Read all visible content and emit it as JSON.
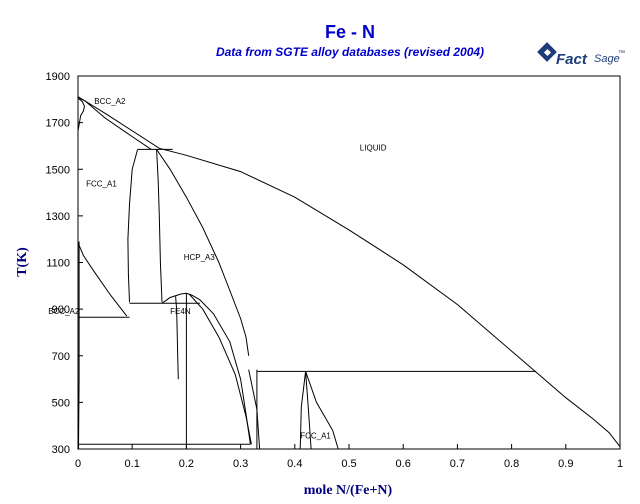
{
  "chart_data": {
    "type": "phase-diagram",
    "title": "Fe - N",
    "subtitle": "Data from SGTE alloy databases (revised 2004)",
    "xlabel": "mole N/(Fe+N)",
    "ylabel": "T(K)",
    "xlim": [
      0,
      1
    ],
    "ylim": [
      300,
      1900
    ],
    "x_ticks": [
      "0",
      "0.1",
      "0.2",
      "0.3",
      "0.4",
      "0.5",
      "0.6",
      "0.7",
      "0.8",
      "0.9",
      "1"
    ],
    "y_ticks": [
      "300",
      "500",
      "700",
      "900",
      "1100",
      "1300",
      "1500",
      "1700",
      "1900"
    ],
    "grid": false,
    "phase_labels": [
      {
        "text": "LIQUID",
        "x": 0.52,
        "y": 1580
      },
      {
        "text": "BCC_A2",
        "x": 0.03,
        "y": 1780
      },
      {
        "text": "FCC_A1",
        "x": 0.015,
        "y": 1425
      },
      {
        "text": "HCP_A3",
        "x": 0.195,
        "y": 1110
      },
      {
        "text": "BCC_A2",
        "x": -0.055,
        "y": 880
      },
      {
        "text": "FE4N",
        "x": 0.17,
        "y": 880
      },
      {
        "text": "FCC_A1",
        "x": 0.41,
        "y": 345
      }
    ],
    "boundaries": [
      {
        "id": "liquidus",
        "points": [
          [
            0,
            1811
          ],
          [
            0.05,
            1740
          ],
          [
            0.15,
            1590
          ],
          [
            0.2,
            1560
          ],
          [
            0.3,
            1490
          ],
          [
            0.4,
            1380
          ],
          [
            0.5,
            1240
          ],
          [
            0.6,
            1090
          ],
          [
            0.7,
            920
          ],
          [
            0.8,
            720
          ],
          [
            0.85,
            620
          ],
          [
            0.9,
            520
          ],
          [
            0.95,
            430
          ],
          [
            0.98,
            370
          ],
          [
            1.0,
            310
          ]
        ]
      },
      {
        "id": "delta-ferrite-liquid",
        "points": [
          [
            0,
            1811
          ],
          [
            0.006,
            1800
          ],
          [
            0.012,
            1795
          ]
        ]
      },
      {
        "id": "delta-loop-upper",
        "points": [
          [
            0,
            1805
          ],
          [
            0.008,
            1790
          ],
          [
            0.012,
            1770
          ],
          [
            0.01,
            1750
          ],
          [
            0.005,
            1730
          ],
          [
            0,
            1665
          ]
        ]
      },
      {
        "id": "fcc-solidus",
        "points": [
          [
            0.012,
            1795
          ],
          [
            0.05,
            1720
          ],
          [
            0.1,
            1640
          ],
          [
            0.135,
            1585
          ]
        ]
      },
      {
        "id": "peritectic-fcc-hcp",
        "points": [
          [
            0.11,
            1585
          ],
          [
            0.175,
            1585
          ]
        ]
      },
      {
        "id": "fcc-hcp-left",
        "points": [
          [
            0.11,
            1585
          ],
          [
            0.1,
            1500
          ],
          [
            0.095,
            1350
          ],
          [
            0.092,
            1200
          ],
          [
            0.093,
            1050
          ],
          [
            0.095,
            930
          ]
        ]
      },
      {
        "id": "fcc-hcp-right",
        "points": [
          [
            0.145,
            1585
          ],
          [
            0.148,
            1450
          ],
          [
            0.15,
            1300
          ],
          [
            0.152,
            1100
          ],
          [
            0.155,
            930
          ]
        ]
      },
      {
        "id": "hcp-liquid-right",
        "points": [
          [
            0.145,
            1585
          ],
          [
            0.17,
            1500
          ],
          [
            0.2,
            1380
          ],
          [
            0.23,
            1250
          ],
          [
            0.26,
            1100
          ],
          [
            0.28,
            980
          ],
          [
            0.3,
            860
          ],
          [
            0.31,
            780
          ],
          [
            0.315,
            700
          ]
        ]
      },
      {
        "id": "eutectoid-line",
        "points": [
          [
            0.095,
            925
          ],
          [
            0.225,
            925
          ]
        ]
      },
      {
        "id": "eutectoid-low-line",
        "points": [
          [
            0,
            865
          ],
          [
            0.095,
            865
          ]
        ]
      },
      {
        "id": "alpha-gamma-left",
        "points": [
          [
            0,
            1185
          ],
          [
            0.01,
            1130
          ],
          [
            0.03,
            1060
          ],
          [
            0.06,
            960
          ],
          [
            0.09,
            870
          ]
        ]
      },
      {
        "id": "fe4n-dome-left",
        "points": [
          [
            0.155,
            925
          ],
          [
            0.17,
            950
          ],
          [
            0.19,
            965
          ],
          [
            0.2,
            968
          ],
          [
            0.21,
            960
          ],
          [
            0.225,
            940
          ],
          [
            0.25,
            880
          ],
          [
            0.28,
            760
          ],
          [
            0.3,
            600
          ],
          [
            0.31,
            450
          ],
          [
            0.318,
            320
          ]
        ]
      },
      {
        "id": "fe4n-dome-inner",
        "points": [
          [
            0.18,
            955
          ],
          [
            0.182,
            900
          ],
          [
            0.183,
            800
          ],
          [
            0.184,
            700
          ],
          [
            0.185,
            600
          ]
        ]
      },
      {
        "id": "fe4n-vertical",
        "points": [
          [
            0.2,
            968
          ],
          [
            0.2,
            300
          ]
        ]
      },
      {
        "id": "fe4n-right-branch",
        "points": [
          [
            0.205,
            965
          ],
          [
            0.23,
            900
          ],
          [
            0.26,
            780
          ],
          [
            0.29,
            620
          ],
          [
            0.31,
            440
          ],
          [
            0.32,
            320
          ]
        ]
      },
      {
        "id": "bcc-low-line",
        "points": [
          [
            0.0,
            320
          ],
          [
            0.318,
            320
          ]
        ]
      },
      {
        "id": "gamma-prime-vertical",
        "points": [
          [
            0.33,
            640
          ],
          [
            0.33,
            300
          ]
        ]
      },
      {
        "id": "eps-low-boundary",
        "points": [
          [
            0.315,
            640
          ],
          [
            0.33,
            470
          ],
          [
            0.335,
            300
          ]
        ]
      },
      {
        "id": "eutectic-633",
        "points": [
          [
            0.33,
            633
          ],
          [
            0.845,
            633
          ]
        ]
      },
      {
        "id": "fcc-high-n-left",
        "points": [
          [
            0.42,
            633
          ],
          [
            0.412,
            480
          ],
          [
            0.41,
            300
          ]
        ]
      },
      {
        "id": "fcc-high-n-right",
        "points": [
          [
            0.42,
            633
          ],
          [
            0.44,
            500
          ],
          [
            0.47,
            380
          ],
          [
            0.48,
            300
          ]
        ]
      },
      {
        "id": "fcc-high-n-inner",
        "points": [
          [
            0.42,
            633
          ],
          [
            0.425,
            470
          ],
          [
            0.43,
            300
          ]
        ]
      },
      {
        "id": "left-alpha-edge",
        "points": [
          [
            0.002,
            1190
          ],
          [
            0.002,
            600
          ],
          [
            0.001,
            300
          ]
        ]
      }
    ]
  },
  "logo": {
    "main": "Fact",
    "sup": "Sage",
    "trademark": "™"
  }
}
